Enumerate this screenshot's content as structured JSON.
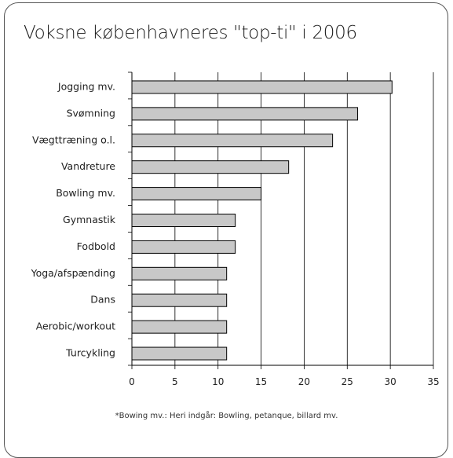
{
  "chart_data": {
    "type": "bar",
    "orientation": "horizontal",
    "title": "Voksne københavneres \"top-ti\" i 2006",
    "categories": [
      "Jogging mv.",
      "Svømning",
      "Vægttræning o.l.",
      "Vandreture",
      "Bowling mv.",
      "Gymnastik",
      "Fodbold",
      "Yoga/afspænding",
      "Dans",
      "Aerobic/workout",
      "Turcykling"
    ],
    "values": [
      30.2,
      26.2,
      23.3,
      18.2,
      15.0,
      12.0,
      12.0,
      11.0,
      11.0,
      11.0,
      11.0
    ],
    "xlim": [
      0,
      35
    ],
    "xticks": [
      "0",
      "5",
      "10",
      "15",
      "20",
      "25",
      "30",
      "35"
    ],
    "grid": true,
    "bar_color": "#c8c8c8",
    "bar_edge_color": "#000000",
    "footnote": "*Bowing mv.: Heri indgår: Bowling, petanque, billard mv."
  }
}
